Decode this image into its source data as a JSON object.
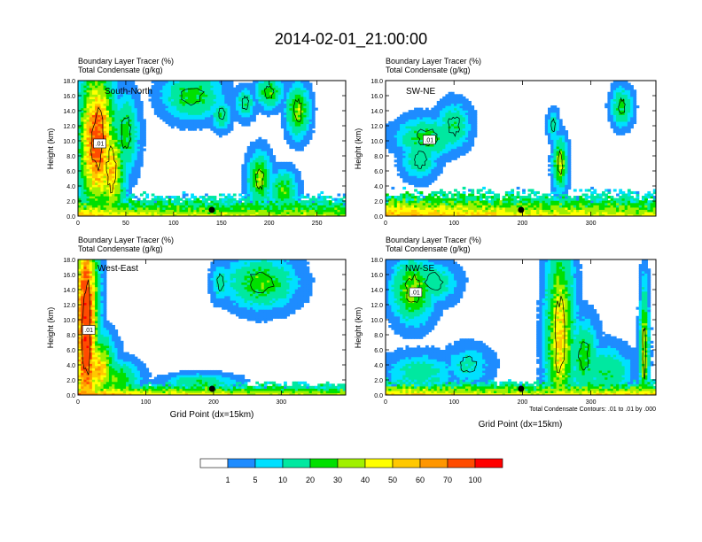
{
  "figure": {
    "title": "2014-02-01_21:00:00",
    "footnote": "Total Condensate Contours: .01 to .01 by .000",
    "x_axis_label": "Grid Point (dx=15km)"
  },
  "panels": [
    {
      "id": "south-north",
      "label": "South-North",
      "line1": "Boundary Layer Tracer   (%)",
      "line2": "Total Condensate   (g/kg)",
      "ylabel": "Height (km)",
      "xlabel": "",
      "xlim": [
        0,
        280
      ],
      "xticks": [
        "0",
        "50",
        "100",
        "150",
        "200",
        "250"
      ],
      "xtick_values": [
        0,
        50,
        100,
        150,
        200,
        250
      ],
      "ylim": [
        0,
        18
      ],
      "yticks": [
        "0.0",
        "2.0",
        "4.0",
        "6.0",
        "8.0",
        "10.0",
        "12.0",
        "14.0",
        "16.0",
        "18.0"
      ],
      "marker_x": 140,
      "contour_label": ".01"
    },
    {
      "id": "sw-ne",
      "label": "SW-NE",
      "line1": "Boundary Layer Tracer   (%)",
      "line2": "Total Condensate   (g/kg)",
      "ylabel": "Height (km)",
      "xlabel": "",
      "xlim": [
        0,
        395
      ],
      "xticks": [
        "0",
        "100",
        "200",
        "300"
      ],
      "xtick_values": [
        0,
        100,
        200,
        300
      ],
      "ylim": [
        0,
        18
      ],
      "yticks": [
        "0.0",
        "2.0",
        "4.0",
        "6.0",
        "8.0",
        "10.0",
        "12.0",
        "14.0",
        "16.0",
        "18.0"
      ],
      "marker_x": 198,
      "contour_label": ".01"
    },
    {
      "id": "west-east",
      "label": "West-East",
      "line1": "Boundary Layer Tracer   (%)",
      "line2": "Total Condensate   (g/kg)",
      "ylabel": "Height (km)",
      "xlabel": "Grid Point (dx=15km)",
      "xlim": [
        0,
        395
      ],
      "xticks": [
        "0",
        "100",
        "200",
        "300"
      ],
      "xtick_values": [
        0,
        100,
        200,
        300
      ],
      "ylim": [
        0,
        18
      ],
      "yticks": [
        "0.0",
        "2.0",
        "4.0",
        "6.0",
        "8.0",
        "10.0",
        "12.0",
        "14.0",
        "16.0",
        "18.0"
      ],
      "marker_x": 198,
      "contour_label": ".01"
    },
    {
      "id": "nw-se",
      "label": "NW-SE",
      "line1": "Boundary Layer Tracer   (%)",
      "line2": "Total Condensate   (g/kg)",
      "ylabel": "Height (km)",
      "xlabel": "Grid Point (dx=15km)",
      "xlim": [
        0,
        395
      ],
      "xticks": [
        "0",
        "100",
        "200",
        "300"
      ],
      "xtick_values": [
        0,
        100,
        200,
        300
      ],
      "ylim": [
        0,
        18
      ],
      "yticks": [
        "0.0",
        "2.0",
        "4.0",
        "6.0",
        "8.0",
        "10.0",
        "12.0",
        "14.0",
        "16.0",
        "18.0"
      ],
      "marker_x": 198,
      "contour_label": ".01"
    }
  ],
  "colorbar": {
    "labels": [
      "1",
      "5",
      "10",
      "20",
      "30",
      "40",
      "50",
      "60",
      "70",
      "100"
    ],
    "colors": [
      "#ffffff",
      "#1e8cff",
      "#00e0ff",
      "#00e8a0",
      "#00e000",
      "#a0f000",
      "#ffff00",
      "#ffc800",
      "#ff9600",
      "#ff4b00",
      "#ff0000"
    ]
  },
  "chart_data": [
    {
      "type": "heatmap",
      "title": "South-North",
      "subtitle": "Boundary Layer Tracer (%) / Total Condensate (g/kg)",
      "xlabel": "",
      "ylabel": "Height (km)",
      "xlim": [
        0,
        280
      ],
      "ylim": [
        0,
        18
      ],
      "levels": [
        1,
        5,
        10,
        20,
        30,
        40,
        50,
        60,
        70,
        100
      ],
      "blobs": [
        {
          "x": 20,
          "z": 10.0,
          "sx": 11,
          "sz": 5.5,
          "v": 80
        },
        {
          "x": 35,
          "z": 6.0,
          "sx": 8,
          "sz": 4.0,
          "v": 55
        },
        {
          "x": 50,
          "z": 11.0,
          "sx": 8,
          "sz": 3.0,
          "v": 25
        },
        {
          "x": 120,
          "z": 16.0,
          "sx": 18,
          "sz": 1.8,
          "v": 25
        },
        {
          "x": 150,
          "z": 13.5,
          "sx": 6,
          "sz": 1.2,
          "v": 18
        },
        {
          "x": 175,
          "z": 15.0,
          "sx": 6,
          "sz": 1.2,
          "v": 18
        },
        {
          "x": 200,
          "z": 16.5,
          "sx": 8,
          "sz": 1.2,
          "v": 28
        },
        {
          "x": 230,
          "z": 14.0,
          "sx": 7,
          "sz": 2.0,
          "v": 35
        },
        {
          "x": 190,
          "z": 5.0,
          "sx": 7,
          "sz": 2.0,
          "v": 35
        },
        {
          "x": 215,
          "z": 3.5,
          "sx": 8,
          "sz": 1.5,
          "v": 28
        }
      ],
      "boundary_layer": [
        {
          "x": 0,
          "v": 60
        },
        {
          "x": 50,
          "v": 45
        },
        {
          "x": 100,
          "v": 45
        },
        {
          "x": 150,
          "v": 40
        },
        {
          "x": 200,
          "v": 40
        },
        {
          "x": 250,
          "v": 40
        },
        {
          "x": 280,
          "v": 35
        }
      ],
      "boundary_layer_depth_km": 2.5,
      "contour_level": 0.01,
      "surface_marker_x": 140
    },
    {
      "type": "heatmap",
      "title": "SW-NE",
      "subtitle": "Boundary Layer Tracer (%) / Total Condensate (g/kg)",
      "xlabel": "",
      "ylabel": "Height (km)",
      "xlim": [
        0,
        395
      ],
      "ylim": [
        0,
        18
      ],
      "levels": [
        1,
        5,
        10,
        20,
        30,
        40,
        50,
        60,
        70,
        100
      ],
      "blobs": [
        {
          "x": 60,
          "z": 10.5,
          "sx": 25,
          "sz": 1.5,
          "v": 25
        },
        {
          "x": 50,
          "z": 7.5,
          "sx": 15,
          "sz": 1.5,
          "v": 18
        },
        {
          "x": 100,
          "z": 12.0,
          "sx": 14,
          "sz": 1.8,
          "v": 20
        },
        {
          "x": 255,
          "z": 7.0,
          "sx": 6,
          "sz": 2.0,
          "v": 40
        },
        {
          "x": 245,
          "z": 12.0,
          "sx": 5,
          "sz": 1.2,
          "v": 15
        },
        {
          "x": 345,
          "z": 14.5,
          "sx": 9,
          "sz": 1.5,
          "v": 25
        }
      ],
      "boundary_layer": [
        {
          "x": 0,
          "v": 65
        },
        {
          "x": 100,
          "v": 55
        },
        {
          "x": 200,
          "v": 50
        },
        {
          "x": 300,
          "v": 45
        },
        {
          "x": 395,
          "v": 40
        }
      ],
      "boundary_layer_depth_km": 3.0,
      "contour_level": 0.01,
      "surface_marker_x": 198
    },
    {
      "type": "heatmap",
      "title": "West-East",
      "subtitle": "Boundary Layer Tracer (%) / Total Condensate (g/kg)",
      "xlabel": "Grid Point (dx=15km)",
      "ylabel": "Height (km)",
      "xlim": [
        0,
        395
      ],
      "ylim": [
        0,
        18
      ],
      "levels": [
        1,
        5,
        10,
        20,
        30,
        40,
        50,
        60,
        70,
        100
      ],
      "blobs": [
        {
          "x": 12,
          "z": 9.0,
          "sx": 10,
          "sz": 9.0,
          "v": 95
        },
        {
          "x": 30,
          "z": 3.5,
          "sx": 14,
          "sz": 2.5,
          "v": 55
        },
        {
          "x": 55,
          "z": 2.0,
          "sx": 20,
          "sz": 1.5,
          "v": 30
        },
        {
          "x": 270,
          "z": 15.0,
          "sx": 30,
          "sz": 2.0,
          "v": 28
        },
        {
          "x": 210,
          "z": 15.0,
          "sx": 8,
          "sz": 1.5,
          "v": 15
        },
        {
          "x": 180,
          "z": 1.8,
          "sx": 30,
          "sz": 0.6,
          "v": 20
        }
      ],
      "boundary_layer": [
        {
          "x": 0,
          "v": 75
        },
        {
          "x": 100,
          "v": 50
        },
        {
          "x": 200,
          "v": 50
        },
        {
          "x": 300,
          "v": 45
        },
        {
          "x": 395,
          "v": 40
        }
      ],
      "boundary_layer_depth_km": 1.5,
      "contour_level": 0.01,
      "surface_marker_x": 198
    },
    {
      "type": "heatmap",
      "title": "NW-SE",
      "subtitle": "Boundary Layer Tracer (%) / Total Condensate (g/kg)",
      "xlabel": "Grid Point (dx=15km)",
      "ylabel": "Height (km)",
      "xlim": [
        0,
        395
      ],
      "ylim": [
        0,
        18
      ],
      "levels": [
        1,
        5,
        10,
        20,
        30,
        40,
        50,
        60,
        70,
        100
      ],
      "blobs": [
        {
          "x": 40,
          "z": 14.0,
          "sx": 18,
          "sz": 2.5,
          "v": 35
        },
        {
          "x": 70,
          "z": 15.0,
          "sx": 20,
          "sz": 1.6,
          "v": 18
        },
        {
          "x": 50,
          "z": 3.0,
          "sx": 30,
          "sz": 1.5,
          "v": 15
        },
        {
          "x": 120,
          "z": 4.0,
          "sx": 20,
          "sz": 1.5,
          "v": 12
        },
        {
          "x": 255,
          "z": 8.0,
          "sx": 12,
          "sz": 7.0,
          "v": 50
        },
        {
          "x": 290,
          "z": 5.0,
          "sx": 12,
          "sz": 3.0,
          "v": 25
        },
        {
          "x": 325,
          "z": 3.0,
          "sx": 20,
          "sz": 2.0,
          "v": 20
        },
        {
          "x": 378,
          "z": 6.0,
          "sx": 4,
          "sz": 5.0,
          "v": 40
        }
      ],
      "boundary_layer": [
        {
          "x": 0,
          "v": 55
        },
        {
          "x": 100,
          "v": 50
        },
        {
          "x": 200,
          "v": 45
        },
        {
          "x": 300,
          "v": 50
        },
        {
          "x": 395,
          "v": 55
        }
      ],
      "boundary_layer_depth_km": 1.8,
      "contour_level": 0.01,
      "surface_marker_x": 198
    }
  ]
}
